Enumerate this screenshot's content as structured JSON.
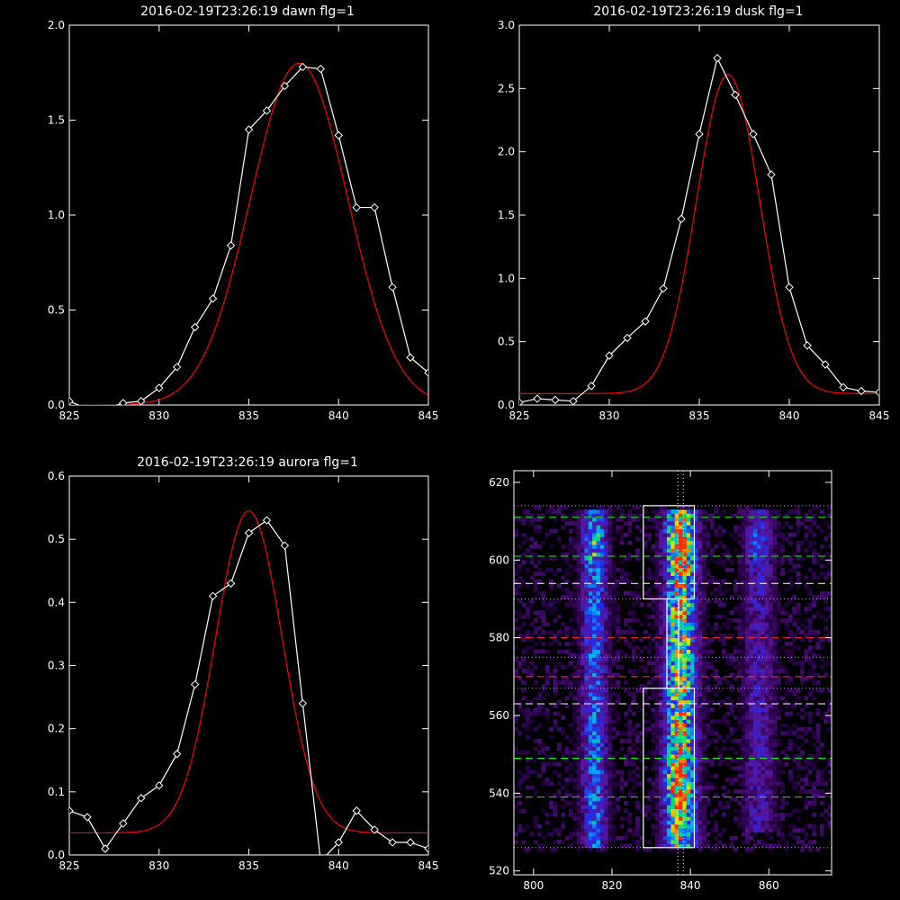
{
  "colors": {
    "background": "#000000",
    "axes": "#ffffff",
    "data": "#ffffff",
    "fit": "#ff0000",
    "green_line": "#00ff00",
    "red_line": "#ff3333",
    "white_dash": "#ffffff",
    "orange_dot": "#ffa500"
  },
  "chart_data": [
    {
      "type": "line",
      "title": "2016-02-19T23:26:19 dawn flg=1",
      "xlim": [
        825,
        845
      ],
      "ylim": [
        0,
        2.0
      ],
      "xticks": [
        825,
        830,
        835,
        840,
        845
      ],
      "xtick_labels": [
        "825",
        "830",
        "835",
        "840",
        "845"
      ],
      "yticks": [
        0,
        0.5,
        1.0,
        1.5,
        2.0
      ],
      "ytick_labels": [
        "0.0",
        "0.5",
        "1.0",
        "1.5",
        "2.0"
      ],
      "series": [
        {
          "style": "white-diamond-line",
          "x": [
            825,
            826,
            827,
            828,
            829,
            830,
            831,
            832,
            833,
            834,
            835,
            836,
            837,
            838,
            839,
            840,
            841,
            842,
            843,
            844,
            845
          ],
          "y": [
            0.02,
            -0.02,
            -0.02,
            0.01,
            0.02,
            0.09,
            0.2,
            0.41,
            0.56,
            0.84,
            1.45,
            1.55,
            1.68,
            1.78,
            1.77,
            1.42,
            1.04,
            1.04,
            0.62,
            0.25,
            0.17
          ]
        }
      ],
      "fit": {
        "style": "red-gaussian",
        "amplitude": 1.8,
        "center": 837.8,
        "sigma": 2.7,
        "offset": 0.0
      }
    },
    {
      "type": "line",
      "title": "2016-02-19T23:26:19 dusk flg=1",
      "xlim": [
        825,
        845
      ],
      "ylim": [
        0,
        3.0
      ],
      "xticks": [
        825,
        830,
        835,
        840,
        845
      ],
      "xtick_labels": [
        "825",
        "830",
        "835",
        "840",
        "845"
      ],
      "yticks": [
        0,
        0.5,
        1.0,
        1.5,
        2.0,
        2.5,
        3.0
      ],
      "ytick_labels": [
        "0.0",
        "0.5",
        "1.0",
        "1.5",
        "2.0",
        "2.5",
        "3.0"
      ],
      "series": [
        {
          "style": "white-diamond-line",
          "x": [
            825,
            826,
            827,
            828,
            829,
            830,
            831,
            832,
            833,
            834,
            835,
            836,
            837,
            838,
            839,
            840,
            841,
            842,
            843,
            844,
            845
          ],
          "y": [
            0.02,
            0.05,
            0.04,
            0.03,
            0.15,
            0.39,
            0.53,
            0.66,
            0.92,
            1.47,
            2.14,
            2.74,
            2.45,
            2.14,
            1.82,
            0.93,
            0.47,
            0.32,
            0.14,
            0.11,
            0.1
          ]
        }
      ],
      "fit": {
        "style": "red-gaussian",
        "amplitude": 2.52,
        "center": 836.6,
        "sigma": 1.75,
        "offset": 0.09
      }
    },
    {
      "type": "line",
      "title": "2016-02-19T23:26:19 aurora flg=1",
      "xlim": [
        825,
        845
      ],
      "ylim": [
        0,
        0.6
      ],
      "xticks": [
        825,
        830,
        835,
        840,
        845
      ],
      "xtick_labels": [
        "825",
        "830",
        "835",
        "840",
        "845"
      ],
      "yticks": [
        0,
        0.1,
        0.2,
        0.3,
        0.4,
        0.5,
        0.6
      ],
      "ytick_labels": [
        "0.0",
        "0.1",
        "0.2",
        "0.3",
        "0.4",
        "0.5",
        "0.6"
      ],
      "series": [
        {
          "style": "white-diamond-line",
          "x": [
            825,
            826,
            827,
            828,
            829,
            830,
            831,
            832,
            833,
            834,
            835,
            836,
            837,
            838,
            839,
            840,
            841,
            842,
            843,
            844,
            845
          ],
          "y": [
            0.07,
            0.06,
            0.01,
            0.05,
            0.09,
            0.11,
            0.16,
            0.27,
            0.41,
            0.43,
            0.51,
            0.53,
            0.49,
            0.24,
            -0.01,
            0.02,
            0.07,
            0.04,
            0.02,
            0.02,
            0.01
          ]
        }
      ],
      "fit": {
        "style": "red-gaussian",
        "amplitude": 0.51,
        "center": 835.0,
        "sigma": 1.85,
        "offset": 0.035
      }
    },
    {
      "type": "heatmap",
      "title": "",
      "xlim": [
        795,
        876
      ],
      "ylim": [
        519,
        623
      ],
      "xticks": [
        800,
        820,
        840,
        860
      ],
      "xtick_labels": [
        "800",
        "820",
        "840",
        "860"
      ],
      "yticks": [
        520,
        540,
        560,
        580,
        600,
        620
      ],
      "ytick_labels": [
        "520",
        "540",
        "560",
        "580",
        "600",
        "620"
      ],
      "columns": [
        {
          "center": 815,
          "width": 2.5,
          "y_range": [
            526,
            612
          ],
          "strength": 0.55
        },
        {
          "center": 837,
          "width": 3.0,
          "y_range": [
            526,
            612
          ],
          "strength": 0.95
        },
        {
          "center": 857,
          "width": 3.0,
          "y_range": [
            530,
            612
          ],
          "strength": 0.35
        }
      ],
      "hotspots": [
        {
          "x": 837,
          "y": 603,
          "strength": 1.0
        },
        {
          "x": 836,
          "y": 543,
          "strength": 0.7
        },
        {
          "x": 815,
          "y": 603,
          "strength": 0.6
        },
        {
          "x": 857,
          "y": 604,
          "strength": 0.45
        }
      ],
      "boxes": [
        {
          "x": [
            828,
            841
          ],
          "y": [
            590,
            614
          ]
        },
        {
          "x": [
            834,
            837
          ],
          "y": [
            567,
            590
          ]
        },
        {
          "x": [
            828,
            841
          ],
          "y": [
            526,
            567
          ]
        }
      ],
      "vlines": [
        {
          "x": 836.8,
          "style": "dotted-white"
        },
        {
          "x": 838.2,
          "style": "dotted-white"
        }
      ],
      "hlines": [
        {
          "y": 614,
          "style": "dotted-orange"
        },
        {
          "y": 611,
          "style": "dashed-green"
        },
        {
          "y": 601,
          "style": "dashed-green"
        },
        {
          "y": 594,
          "style": "dashed-white"
        },
        {
          "y": 590,
          "style": "dotted-orange"
        },
        {
          "y": 580,
          "style": "dashed-red"
        },
        {
          "y": 575,
          "style": "dotted-orange"
        },
        {
          "y": 570,
          "style": "dashed-red"
        },
        {
          "y": 567,
          "style": "dotted-orange"
        },
        {
          "y": 563,
          "style": "dashed-white"
        },
        {
          "y": 549,
          "style": "dashed-green"
        },
        {
          "y": 539,
          "style": "dashed-green"
        },
        {
          "y": 526,
          "style": "dotted-orange"
        }
      ]
    }
  ]
}
